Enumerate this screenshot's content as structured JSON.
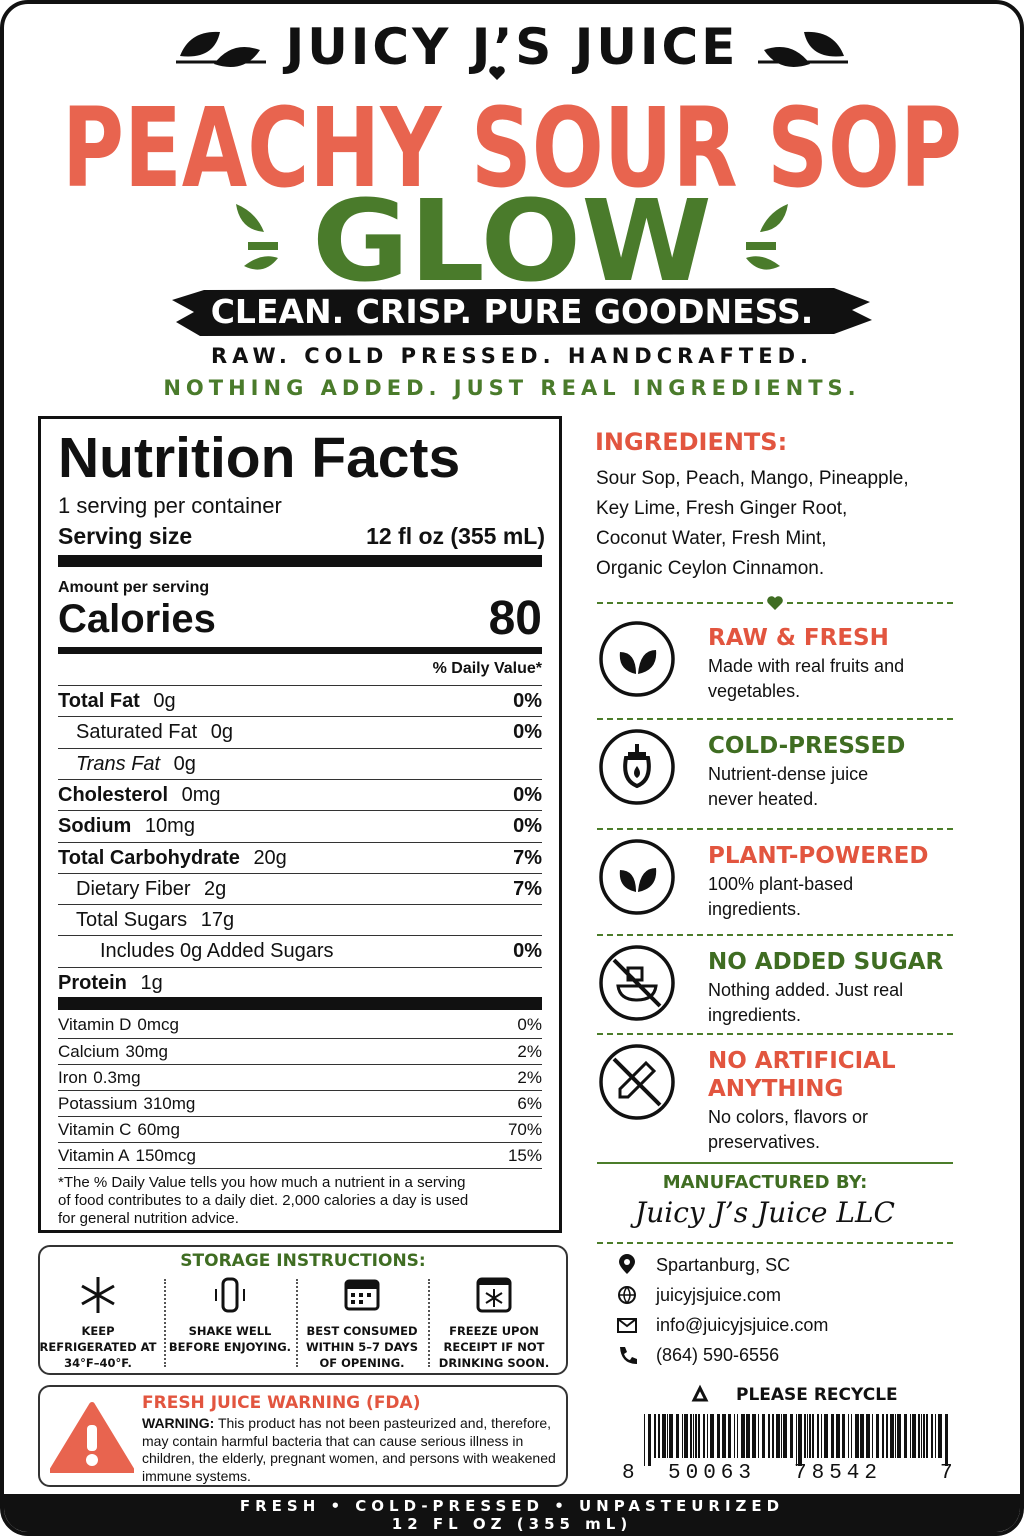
{
  "header": {
    "brand": "JUICY J’S JUICE",
    "product": "PEACHY SOUR SOP",
    "variant": "GLOW",
    "tagline": "CLEAN. CRISP. PURE GOODNESS.",
    "line1": "RAW. COLD PRESSED. HANDCRAFTED.",
    "line2": "NOTHING ADDED. JUST REAL INGREDIENTS."
  },
  "nutrition": {
    "title": "Nutrition Facts",
    "servings": "1 serving per container",
    "serving_size_label": "Serving size",
    "serving_size": "12 fl oz (355 mL)",
    "amount_label": "Amount per serving",
    "calories_label": "Calories",
    "calories": 80,
    "dv_header": "% Daily Value*",
    "rows": [
      {
        "name": "Total Fat",
        "amount": "0g",
        "dv": "0%"
      },
      {
        "name": "Saturated Fat",
        "amount": "0g",
        "dv": "0%"
      },
      {
        "name": "Trans Fat",
        "amount": "0g"
      },
      {
        "name": "Cholesterol",
        "amount": "0mg",
        "dv": "0%"
      },
      {
        "name": "Sodium",
        "amount": "10mg",
        "dv": "0%"
      },
      {
        "name": "Total Carbohydrate",
        "amount": "20g",
        "dv": "7%"
      },
      {
        "name": "Dietary Fiber",
        "amount": "2g",
        "dv": "7%"
      },
      {
        "name": "Total Sugars",
        "amount": "17g"
      },
      {
        "name": "Includes 0g Added Sugars",
        "dv": "0%"
      },
      {
        "name": "Protein",
        "amount": "1g"
      }
    ],
    "minerals": [
      {
        "name": "Vitamin D",
        "amount": "0mcg",
        "dv": "0%"
      },
      {
        "name": "Calcium",
        "amount": "30mg",
        "dv": "2%"
      },
      {
        "name": "Iron",
        "amount": "0.3mg",
        "dv": "2%"
      },
      {
        "name": "Potassium",
        "amount": "310mg",
        "dv": "6%"
      },
      {
        "name": "Vitamin C",
        "amount": "60mg",
        "dv": "70%"
      },
      {
        "name": "Vitamin A",
        "amount": "150mcg",
        "dv": "15%"
      }
    ],
    "footnote": "*The % Daily Value tells you how much a nutrient in a serving of food contributes to a daily diet. 2,000 calories a day is used for general nutrition advice."
  },
  "storage": {
    "title": "STORAGE INSTRUCTIONS:",
    "items": [
      "KEEP REFRIGERATED AT 34°F–40°F.",
      "SHAKE WELL BEFORE ENJOYING.",
      "BEST CONSUMED WITHIN 5–7 DAYS OF OPENING.",
      "FREEZE UPON RECEIPT IF NOT DRINKING SOON."
    ]
  },
  "warning": {
    "title": "FRESH JUICE WARNING (FDA)",
    "label": "WARNING:",
    "text": "This product has not been pasteurized and, therefore, may contain harmful bacteria that can cause serious illness in children, the elderly, pregnant women, and persons with weakened immune systems."
  },
  "ingredients": {
    "title": "INGREDIENTS:",
    "lines": [
      "Sour Sop, Peach, Mango, Pineapple,",
      "Key Lime, Fresh Ginger Root,",
      "Coconut Water, Fresh Mint,",
      "Organic Ceylon Cinnamon."
    ]
  },
  "features": [
    {
      "title": "RAW & FRESH",
      "text": "Made with real fruits and vegetables.",
      "color": "#e2553f"
    },
    {
      "title": "COLD-PRESSED",
      "text": "Nutrient-dense juice never heated.",
      "color": "#3f6d22"
    },
    {
      "title": "PLANT-POWERED",
      "text": "100% plant-based ingredients.",
      "color": "#e2553f"
    },
    {
      "title": "NO ADDED SUGAR",
      "text": "Nothing added. Just real ingredients.",
      "color": "#3f6d22"
    },
    {
      "title": "NO ARTIFICIAL ANYTHING",
      "text": "No colors, flavors or preservatives.",
      "color": "#e2553f"
    }
  ],
  "manufacturer": {
    "label": "MANUFACTURED BY:",
    "name": "Juicy J’s Juice LLC"
  },
  "contact": [
    "Spartanburg, SC",
    "juicyjsjuice.com",
    "info@juicyjsjuice.com",
    "(864) 590-6556"
  ],
  "recycle": "PLEASE RECYCLE",
  "barcode": [
    "8",
    "50063",
    "78542",
    "7"
  ],
  "footer": {
    "line1": "FRESH • COLD-PRESSED • UNPASTEURIZED",
    "line2": "12 FL OZ (355 mL)"
  }
}
